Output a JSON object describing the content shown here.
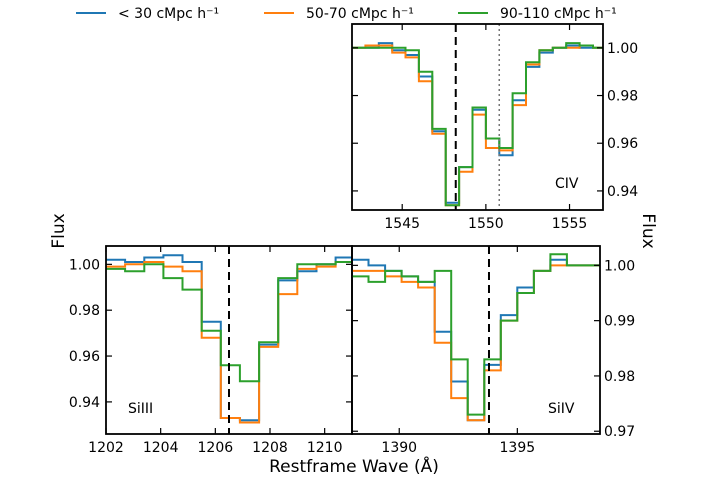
{
  "legend": {
    "entries": [
      {
        "name": "< 30 cMpc h⁻¹",
        "color": "#1f77b4"
      },
      {
        "name": "50-70 cMpc h⁻¹",
        "color": "#ff7f0e"
      },
      {
        "name": "90-110 cMpc h⁻¹",
        "color": "#2ca02c"
      }
    ]
  },
  "ylabel_left": "Flux",
  "ylabel_right": "Flux",
  "xlabel": "Restframe Wave (Å)",
  "chart_data": [
    {
      "type": "line",
      "step": true,
      "panel": "CIV",
      "title": "CIV",
      "xlim": [
        1542,
        1557
      ],
      "ylim": [
        0.932,
        1.01
      ],
      "xticks": [
        1545,
        1550,
        1555
      ],
      "yticks": [
        0.94,
        0.96,
        0.98,
        1.0
      ],
      "ytick_labels": [
        "0.94",
        "0.96",
        "0.98",
        "1.00"
      ],
      "vlines": [
        {
          "x": 1548.2,
          "style": "dashed"
        },
        {
          "x": 1550.8,
          "style": "dotted"
        }
      ],
      "x": [
        1542.0,
        1542.8,
        1543.6,
        1544.4,
        1545.2,
        1546.0,
        1546.8,
        1547.6,
        1548.4,
        1549.2,
        1550.0,
        1550.8,
        1551.6,
        1552.4,
        1553.2,
        1554.0,
        1554.8,
        1555.6,
        1556.4,
        1557.0
      ],
      "series": [
        {
          "name": "< 30 cMpc h⁻¹",
          "color": "#1f77b4",
          "values": [
            1.0,
            1.0,
            1.002,
            0.999,
            0.997,
            0.988,
            0.965,
            0.935,
            0.95,
            0.974,
            0.962,
            0.955,
            0.978,
            0.992,
            0.998,
            1.0,
            1.001,
            1.0,
            1.0,
            1.0
          ]
        },
        {
          "name": "50-70 cMpc h⁻¹",
          "color": "#ff7f0e",
          "values": [
            1.0,
            1.001,
            1.001,
            0.998,
            0.996,
            0.986,
            0.964,
            0.934,
            0.948,
            0.972,
            0.958,
            0.957,
            0.976,
            0.993,
            0.999,
            1.0,
            1.0,
            1.001,
            1.0,
            1.0
          ]
        },
        {
          "name": "90-110 cMpc h⁻¹",
          "color": "#2ca02c",
          "values": [
            1.0,
            1.0,
            1.0,
            1.0,
            0.999,
            0.99,
            0.966,
            0.934,
            0.95,
            0.975,
            0.962,
            0.958,
            0.981,
            0.994,
            0.999,
            1.0,
            1.002,
            1.001,
            1.0,
            1.0
          ]
        }
      ]
    },
    {
      "type": "line",
      "step": true,
      "panel": "SiIII",
      "title": "SiIII",
      "xlim": [
        1202,
        1211
      ],
      "ylim": [
        0.926,
        1.008
      ],
      "xticks": [
        1202,
        1204,
        1206,
        1208,
        1210
      ],
      "yticks": [
        0.94,
        0.96,
        0.98,
        1.0
      ],
      "ytick_labels": [
        "0.94",
        "0.96",
        "0.98",
        "1.00"
      ],
      "vlines": [
        {
          "x": 1206.5,
          "style": "dashed"
        }
      ],
      "x": [
        1202.0,
        1202.7,
        1203.4,
        1204.1,
        1204.8,
        1205.5,
        1206.2,
        1206.9,
        1207.6,
        1208.3,
        1209.0,
        1209.7,
        1210.4,
        1211.0
      ],
      "series": [
        {
          "name": "< 30 cMpc h⁻¹",
          "color": "#1f77b4",
          "values": [
            1.002,
            1.001,
            1.003,
            1.004,
            1.001,
            0.975,
            0.933,
            0.932,
            0.965,
            0.993,
            0.997,
            1.0,
            1.003,
            1.003
          ]
        },
        {
          "name": "50-70 cMpc h⁻¹",
          "color": "#ff7f0e",
          "values": [
            0.999,
            1.0,
            1.001,
            0.999,
            0.997,
            0.968,
            0.933,
            0.931,
            0.964,
            0.987,
            0.998,
            0.999,
            1.001,
            1.0
          ]
        },
        {
          "name": "90-110 cMpc h⁻¹",
          "color": "#2ca02c",
          "values": [
            0.998,
            0.997,
            1.0,
            0.994,
            0.989,
            0.971,
            0.956,
            0.949,
            0.966,
            0.994,
            1.0,
            1.0,
            1.001,
            1.0
          ]
        }
      ]
    },
    {
      "type": "line",
      "step": true,
      "panel": "SiIV",
      "title": "SiIV",
      "xlim": [
        1388,
        1398.5
      ],
      "ylim": [
        0.9695,
        1.0035
      ],
      "xticks": [
        1390,
        1395
      ],
      "yticks": [
        0.97,
        0.98,
        0.99,
        1.0
      ],
      "ytick_labels": [
        "0.97",
        "0.98",
        "0.99",
        "1.00"
      ],
      "vlines": [
        {
          "x": 1393.8,
          "style": "dashed"
        }
      ],
      "x": [
        1388.0,
        1388.7,
        1389.4,
        1390.1,
        1390.8,
        1391.5,
        1392.2,
        1392.9,
        1393.6,
        1394.3,
        1395.0,
        1395.7,
        1396.4,
        1397.1,
        1397.8,
        1398.5
      ],
      "series": [
        {
          "name": "< 30 cMpc h⁻¹",
          "color": "#1f77b4",
          "values": [
            1.001,
            1.0,
            0.999,
            0.998,
            0.997,
            0.988,
            0.979,
            0.972,
            0.982,
            0.991,
            0.996,
            0.999,
            1.001,
            1.0,
            1.0,
            1.0
          ]
        },
        {
          "name": "50-70 cMpc h⁻¹",
          "color": "#ff7f0e",
          "values": [
            0.999,
            0.999,
            0.998,
            0.997,
            0.996,
            0.986,
            0.976,
            0.972,
            0.981,
            0.99,
            0.995,
            0.999,
            1.0,
            1.0,
            1.0,
            1.0
          ]
        },
        {
          "name": "90-110 cMpc h⁻¹",
          "color": "#2ca02c",
          "values": [
            0.998,
            0.997,
            0.999,
            0.998,
            0.997,
            0.999,
            0.983,
            0.973,
            0.983,
            0.99,
            0.995,
            0.999,
            1.002,
            1.0,
            1.0,
            1.0
          ]
        }
      ]
    }
  ]
}
